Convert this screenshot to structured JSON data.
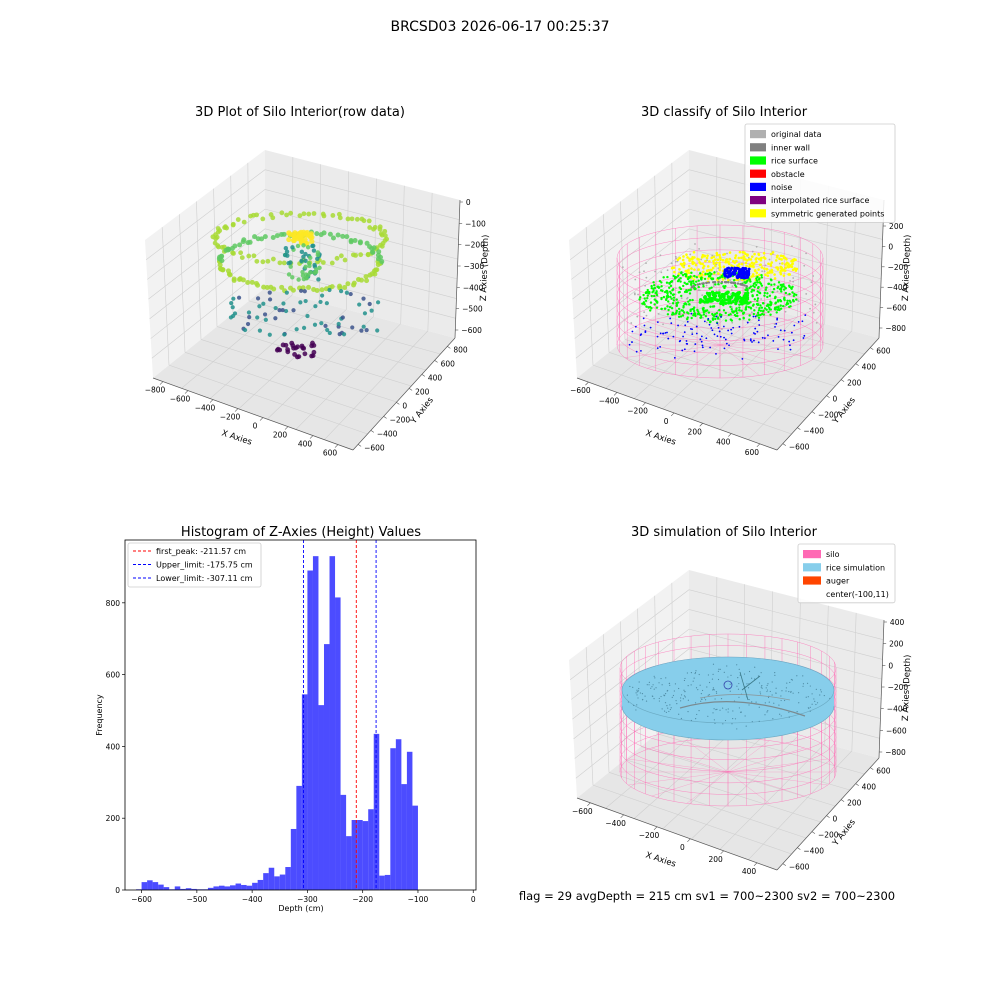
{
  "suptitle": "BRCSD03 2026-06-17 00:25:37",
  "footer": "flag = 29  avgDepth = 215 cm  sv1 = 700~2300  sv2 = 700~2300",
  "colors": {
    "hist_bar": "#0000ff",
    "first_peak": "#ff0000",
    "limits": "#0000ff",
    "silo": "#ff69b4",
    "rice_sim": "#87ceeb",
    "auger": "#ff4500",
    "rice_surface": "#00ff00",
    "noise": "#0000ff",
    "symmetric": "#ffff00",
    "inner_wall": "#808080",
    "original": "#b0b0b0",
    "interpolated": "#800080",
    "obstacle": "#ff0000"
  },
  "chart_data": [
    {
      "type": "scatter",
      "title": "3D Plot of Silo Interior(row data)",
      "xlabel": "X Axies",
      "ylabel": "Y Axies",
      "zlabel": "Z Axies (Depth)",
      "x_ticks": [
        "−800",
        "−600",
        "−400",
        "−200",
        "0",
        "200",
        "400",
        "600"
      ],
      "y_ticks": [
        "−600",
        "−400",
        "−200",
        "0",
        "200",
        "400",
        "600",
        "800"
      ],
      "z_ticks": [
        "0",
        "−100",
        "−200",
        "−300",
        "−400",
        "−500",
        "−600"
      ],
      "colormap": "viridis"
    },
    {
      "type": "scatter",
      "title": "3D classify of Silo Interior",
      "xlabel": "X Axies",
      "ylabel": "Y Axies",
      "zlabel": "Z Axies (Depth)",
      "x_ticks": [
        "−600",
        "−400",
        "−200",
        "0",
        "200",
        "400",
        "600"
      ],
      "y_ticks": [
        "−600",
        "−400",
        "−200",
        "0",
        "200",
        "400",
        "600"
      ],
      "z_ticks": [
        "200",
        "0",
        "−200",
        "−400",
        "−600",
        "−800"
      ],
      "legend": [
        {
          "label": "original data",
          "color": "#b0b0b0"
        },
        {
          "label": "inner wall",
          "color": "#808080"
        },
        {
          "label": "rice surface",
          "color": "#00ff00"
        },
        {
          "label": "obstacle",
          "color": "#ff0000"
        },
        {
          "label": "noise",
          "color": "#0000ff"
        },
        {
          "label": "interpolated rice surface",
          "color": "#800080"
        },
        {
          "label": "symmetric generated points",
          "color": "#ffff00"
        }
      ]
    },
    {
      "type": "bar",
      "title": "Histogram of Z-Axies (Height) Values",
      "xlabel": "Depth (cm)",
      "ylabel": "Frequency",
      "xlim": [
        -630,
        5
      ],
      "ylim": [
        0,
        975
      ],
      "x_ticks": [
        -600,
        -500,
        -400,
        -300,
        -200,
        -100,
        0
      ],
      "y_ticks": [
        0,
        200,
        400,
        600,
        800
      ],
      "bin_width": 10,
      "bin_starts": [
        -610,
        -600,
        -590,
        -580,
        -570,
        -560,
        -550,
        -540,
        -530,
        -520,
        -510,
        -500,
        -490,
        -480,
        -470,
        -460,
        -450,
        -440,
        -430,
        -420,
        -410,
        -400,
        -390,
        -380,
        -370,
        -360,
        -350,
        -340,
        -330,
        -320,
        -310,
        -300,
        -290,
        -280,
        -270,
        -260,
        -250,
        -240,
        -230,
        -220,
        -210,
        -200,
        -190,
        -180,
        -170,
        -160,
        -150,
        -140,
        -130,
        -120,
        -110,
        -100,
        -90,
        -80,
        -70,
        -60,
        -50,
        -40,
        -30
      ],
      "values": [
        2,
        22,
        27,
        22,
        15,
        8,
        2,
        10,
        3,
        5,
        3,
        2,
        2,
        6,
        10,
        12,
        10,
        13,
        18,
        14,
        12,
        20,
        28,
        47,
        62,
        38,
        43,
        64,
        170,
        290,
        545,
        890,
        930,
        515,
        685,
        930,
        815,
        265,
        150,
        195,
        195,
        192,
        225,
        435,
        40,
        42,
        395,
        420,
        295,
        385,
        235,
        0,
        0,
        0,
        0,
        0,
        0,
        0,
        0
      ],
      "lines": [
        {
          "label": "first_peak: -211.57 cm",
          "value": -211.57,
          "color": "#ff0000"
        },
        {
          "label": "Upper_limit: -175.75 cm",
          "value": -175.75,
          "color": "#0000ff"
        },
        {
          "label": "Lower_limit: -307.11 cm",
          "value": -307.11,
          "color": "#0000ff"
        }
      ]
    },
    {
      "type": "scatter",
      "title": "3D simulation of Silo Interior",
      "xlabel": "X Axies",
      "ylabel": "Y Axies",
      "zlabel": "Z Axies (Depth)",
      "x_ticks": [
        "−600",
        "−400",
        "−200",
        "0",
        "200",
        "400"
      ],
      "y_ticks": [
        "−600",
        "−400",
        "−200",
        "0",
        "200",
        "400",
        "600"
      ],
      "z_ticks": [
        "400",
        "200",
        "0",
        "−200",
        "−400",
        "−600",
        "−800"
      ],
      "legend": [
        {
          "label": "silo",
          "color": "#ff69b4"
        },
        {
          "label": "rice simulation",
          "color": "#87ceeb"
        },
        {
          "label": "auger",
          "color": "#ff4500"
        },
        {
          "label": "center(-100,11)",
          "color": ""
        }
      ]
    }
  ]
}
